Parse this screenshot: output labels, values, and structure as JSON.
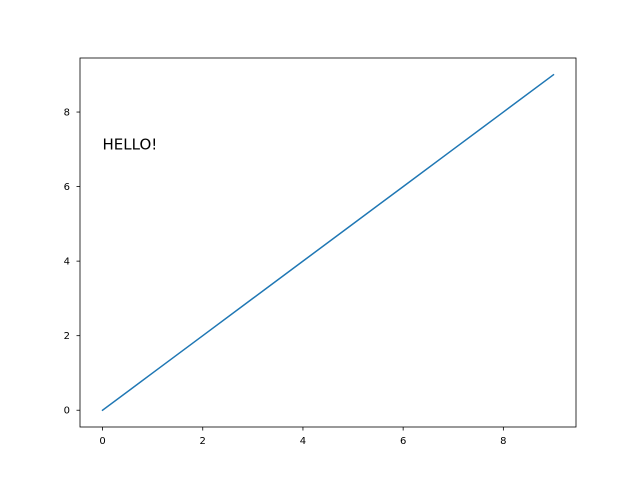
{
  "chart_data": {
    "type": "line",
    "title": "",
    "xlabel": "",
    "ylabel": "",
    "xlim": [
      -0.45,
      9.45
    ],
    "ylim": [
      -0.45,
      9.45
    ],
    "xticks": [
      0,
      2,
      4,
      6,
      8
    ],
    "yticks": [
      0,
      2,
      4,
      6,
      8
    ],
    "grid": false,
    "series": [
      {
        "x": [
          0,
          1,
          2,
          3,
          4,
          5,
          6,
          7,
          8,
          9
        ],
        "y": [
          0,
          1,
          2,
          3,
          4,
          5,
          6,
          7,
          8,
          9
        ],
        "color": "#1f77b4"
      }
    ],
    "annotations": [
      {
        "text": "HELLO!",
        "x": 0,
        "y": 7
      }
    ]
  }
}
